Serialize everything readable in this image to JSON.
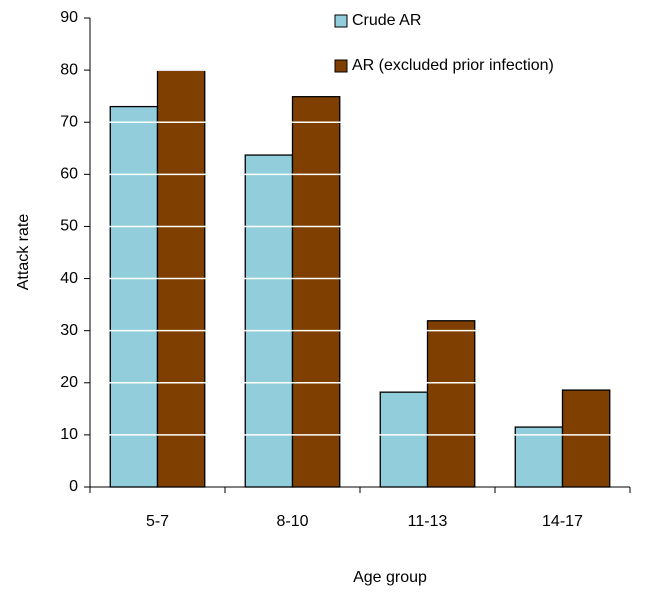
{
  "chart_data": {
    "type": "bar",
    "xlabel": "Age group",
    "ylabel": "Attack rate",
    "categories": [
      "5-7",
      "8-10",
      "11-13",
      "14-17"
    ],
    "series": [
      {
        "name": "Crude AR",
        "color": "#92cddc",
        "values": [
          73,
          63.7,
          18.2,
          11.5
        ]
      },
      {
        "name": "AR (excluded prior infection)",
        "color": "#7f3f00",
        "values": [
          80,
          74.9,
          31.9,
          18.6
        ]
      }
    ],
    "ylim": [
      0,
      90
    ],
    "yticks": [
      0,
      10,
      20,
      30,
      40,
      50,
      60,
      70,
      80,
      90
    ],
    "grid": true,
    "legend": "top-right"
  }
}
